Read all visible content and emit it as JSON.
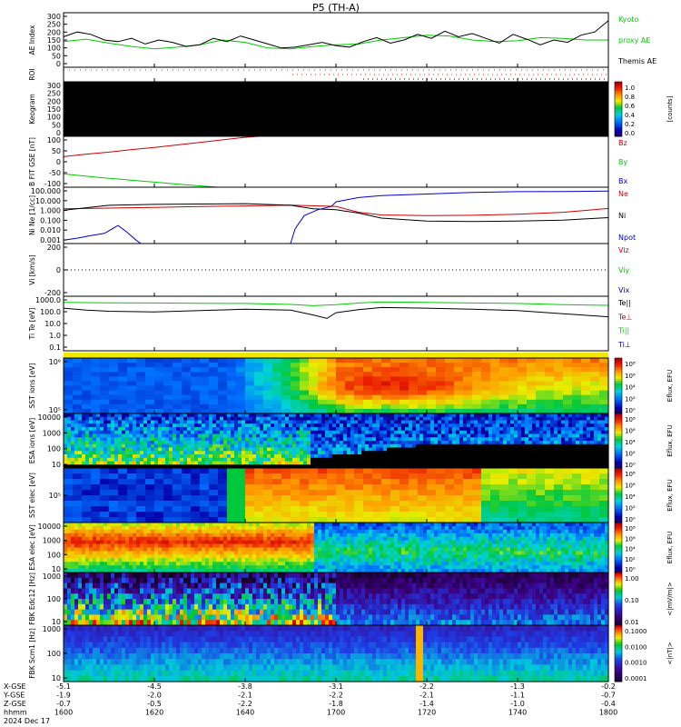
{
  "chart_data": {
    "type": "line",
    "title": "P5 (TH-A)",
    "date_label": "2024 Dec 17",
    "ephemeris": {
      "labels": [
        "X-GSE",
        "Y-GSE",
        "Z-GSE",
        "hhmm"
      ],
      "columns": [
        [
          "-5.1",
          "-1.9",
          "-0.7",
          "1600"
        ],
        [
          "-4.5",
          "-2.0",
          "-0.5",
          "1620"
        ],
        [
          "-3.8",
          "-2.1",
          "-2.2",
          "1640"
        ],
        [
          "-3.1",
          "-2.2",
          "-1.8",
          "1700"
        ],
        [
          "-2.2",
          "-2.1",
          "-1.4",
          "1720"
        ],
        [
          "-1.3",
          "-1.1",
          "-1.0",
          "1740"
        ],
        [
          "-0.2",
          "-0.7",
          "-0.4",
          "1800"
        ]
      ]
    },
    "panels": [
      {
        "id": "ae",
        "ylabel": "AE Index",
        "yticks": [
          "300",
          "250",
          "200",
          "150",
          "100",
          "50",
          "0"
        ],
        "ylim": [
          -20,
          320
        ],
        "legend": [
          {
            "text": "Kyoto",
            "color": "#00cc00"
          },
          {
            "text": "proxy AE",
            "color": "#00cc00"
          },
          {
            "text": "Themis AE",
            "color": "#000000"
          }
        ],
        "series": [
          {
            "name": "Kyoto proxy AE",
            "color": "#00cc00",
            "x": [
              1600,
              1605,
              1610,
              1615,
              1620,
              1625,
              1630,
              1635,
              1640,
              1645,
              1650,
              1655,
              1700,
              1705,
              1710,
              1715,
              1720,
              1725,
              1730,
              1735,
              1740,
              1745,
              1750,
              1755,
              1800
            ],
            "y": [
              140,
              155,
              130,
              110,
              95,
              105,
              120,
              150,
              135,
              100,
              95,
              110,
              120,
              125,
              150,
              165,
              180,
              175,
              150,
              140,
              145,
              165,
              160,
              150,
              150
            ]
          },
          {
            "name": "Themis AE",
            "color": "#000000",
            "x": [
              1600,
              1603,
              1606,
              1609,
              1612,
              1615,
              1618,
              1621,
              1624,
              1627,
              1630,
              1633,
              1636,
              1639,
              1642,
              1645,
              1648,
              1651,
              1654,
              1657,
              1700,
              1703,
              1706,
              1709,
              1712,
              1715,
              1718,
              1721,
              1724,
              1727,
              1730,
              1733,
              1736,
              1739,
              1742,
              1745,
              1748,
              1751,
              1754,
              1757,
              1800
            ],
            "y": [
              170,
              200,
              185,
              150,
              140,
              160,
              125,
              150,
              135,
              110,
              120,
              160,
              140,
              175,
              150,
              125,
              100,
              105,
              120,
              135,
              115,
              105,
              140,
              165,
              130,
              150,
              185,
              160,
              205,
              170,
              190,
              160,
              130,
              185,
              155,
              120,
              150,
              135,
              180,
              200,
              270
            ]
          }
        ]
      },
      {
        "id": "roi",
        "ylabel": "ROI"
      },
      {
        "id": "keogram",
        "ylabel": "Keogram",
        "yticks": [
          "300",
          "250",
          "200",
          "150",
          "100",
          "50",
          "0"
        ],
        "colorbar": {
          "label": "[counts]",
          "ticks": [
            "1.0",
            "0.8",
            "0.6",
            "0.4",
            "0.2",
            "0.0"
          ]
        }
      },
      {
        "id": "bfield",
        "ylabel": "B FIT GSE [nT]",
        "yticks": [
          "100",
          "50",
          "0",
          "-50",
          "-100"
        ],
        "ylim": [
          -100,
          100
        ],
        "legend": [
          {
            "text": "Bz",
            "color": "#cc0000"
          },
          {
            "text": "By",
            "color": "#00cc00"
          },
          {
            "text": "Bx",
            "color": "#0000cc"
          }
        ],
        "series": [
          {
            "name": "Bz",
            "color": "#cc0000",
            "x": [
              1600,
              1605,
              1610,
              1615,
              1620,
              1625,
              1630,
              1635,
              1640,
              1643
            ],
            "y": [
              20,
              30,
              38,
              48,
              56,
              66,
              76,
              86,
              96,
              100
            ]
          },
          {
            "name": "By",
            "color": "#00cc00",
            "x": [
              1600,
              1604,
              1608,
              1612,
              1616,
              1620,
              1624,
              1628,
              1632,
              1634
            ],
            "y": [
              -48,
              -55,
              -62,
              -68,
              -74,
              -80,
              -86,
              -92,
              -97,
              -100
            ]
          }
        ]
      },
      {
        "id": "density",
        "ylabel": "Ni Ne [1/cc]",
        "yticks": [
          "100.000",
          "10.000",
          "1.000",
          "0.100",
          "0.010",
          "0.001"
        ],
        "ylim": [
          0.001,
          100
        ],
        "log": true,
        "legend": [
          {
            "text": "Ne",
            "color": "#cc0000"
          },
          {
            "text": "Ni",
            "color": "#000000"
          },
          {
            "text": "Npot",
            "color": "#0000cc"
          }
        ],
        "series": [
          {
            "name": "Ne",
            "color": "#cc0000",
            "x": [
              1600,
              1610,
              1620,
              1630,
              1640,
              1650,
              1700,
              1705,
              1710,
              1720,
              1730,
              1740,
              1750,
              1800
            ],
            "y": [
              1.2,
              1.4,
              1.6,
              1.9,
              2.2,
              2.6,
              2.0,
              0.6,
              0.35,
              0.3,
              0.32,
              0.4,
              0.6,
              1.3
            ]
          },
          {
            "name": "Ni",
            "color": "#000000",
            "x": [
              1600,
              1605,
              1610,
              1620,
              1630,
              1640,
              1650,
              1655,
              1700,
              1705,
              1710,
              1720,
              1730,
              1740,
              1750,
              1800
            ],
            "y": [
              0.9,
              1.5,
              2.5,
              3.0,
              3.2,
              3.5,
              2.5,
              1.2,
              1.0,
              0.5,
              0.18,
              0.1,
              0.09,
              0.1,
              0.12,
              0.2
            ]
          },
          {
            "name": "Npot",
            "color": "#0000cc",
            "x": [
              1600,
              1603,
              1606,
              1609,
              1612,
              1614,
              1616,
              1617,
              1650,
              1651,
              1653,
              1656,
              1659,
              1700,
              1705,
              1710,
              1720,
              1730,
              1740,
              1750,
              1800
            ],
            "y": [
              0.002,
              0.003,
              0.005,
              0.008,
              0.04,
              0.01,
              0.002,
              0.001,
              0.001,
              0.02,
              0.3,
              1.0,
              2.0,
              5.0,
              12,
              18,
              25,
              35,
              40,
              42,
              45
            ]
          }
        ]
      },
      {
        "id": "velocity",
        "ylabel": "Vi [km/s]",
        "yticks": [
          "200",
          "0",
          "-200"
        ],
        "ylim": [
          -260,
          260
        ],
        "legend": [
          {
            "text": "Viz",
            "color": "#cc0000"
          },
          {
            "text": "Viy",
            "color": "#00cc00"
          },
          {
            "text": "Vix",
            "color": "#0000cc"
          }
        ]
      },
      {
        "id": "temperature",
        "ylabel": "Ti Te [eV]",
        "yticks": [
          "1000.0",
          "100.0",
          "10.0",
          "1.0",
          "0.1"
        ],
        "ylim": [
          0.05,
          10000
        ],
        "log": true,
        "legend": [
          {
            "text": "Te||",
            "color": "#000000"
          },
          {
            "text": "Te⊥",
            "color": "#cc0000"
          },
          {
            "text": "Ti||",
            "color": "#00cc00"
          },
          {
            "text": "Ti⊥",
            "color": "#0000cc"
          }
        ],
        "series": [
          {
            "name": "Ti||",
            "color": "#00cc00",
            "x": [
              1600,
              1610,
              1620,
              1630,
              1640,
              1650,
              1655,
              1700,
              1705,
              1710,
              1720,
              1730,
              1740,
              1750,
              1800
            ],
            "y": [
              2500,
              2300,
              2200,
              2100,
              2000,
              1600,
              1200,
              1500,
              2200,
              2800,
              2500,
              2200,
              2000,
              1500,
              1300
            ]
          },
          {
            "name": "Te||",
            "color": "#000000",
            "x": [
              1600,
              1605,
              1610,
              1620,
              1630,
              1640,
              1650,
              1655,
              1658,
              1700,
              1705,
              1710,
              1720,
              1730,
              1740,
              1750,
              1800
            ],
            "y": [
              700,
              450,
              350,
              300,
              400,
              550,
              450,
              150,
              70,
              250,
              500,
              800,
              700,
              550,
              400,
              200,
              100
            ]
          }
        ]
      },
      {
        "id": "sst_ion",
        "ylabel": "SST ions [eV]",
        "yticks": [
          "10⁶",
          "10⁵"
        ],
        "colorbar": {
          "label": "Eflux, EFU",
          "ticks": [
            "10⁸",
            "10⁶",
            "10⁴",
            "10²",
            "10⁰"
          ]
        }
      },
      {
        "id": "esa_ion",
        "ylabel": "ESA ions [eV]",
        "yticks": [
          "10000",
          "1000",
          "100",
          "10"
        ],
        "colorbar": {
          "label": "Eflux, EFU",
          "ticks": [
            "10⁸",
            "10⁶",
            "10⁴",
            "10²",
            "10⁰"
          ]
        }
      },
      {
        "id": "sst_elec",
        "ylabel": "SST elec [eV]",
        "yticks": [
          "10⁵"
        ],
        "colorbar": {
          "label": "Eflux, EFU",
          "ticks": [
            "10⁸",
            "10⁶",
            "10⁴",
            "10²",
            "10⁰"
          ]
        }
      },
      {
        "id": "esa_elec",
        "ylabel": "ESA elec [eV]",
        "yticks": [
          "10000",
          "1000",
          "100",
          "10"
        ],
        "colorbar": {
          "label": "Eflux, EFU",
          "ticks": [
            "10⁸",
            "10⁶",
            "10⁴",
            "10²",
            "10⁰"
          ]
        }
      },
      {
        "id": "fbk_e",
        "ylabel": "FBK Edc12 [Hz]",
        "yticks": [
          "1000",
          "100",
          "10"
        ],
        "colorbar": {
          "label": "<|mV/m|>",
          "ticks": [
            "1.00",
            "0.10",
            "0.01"
          ]
        }
      },
      {
        "id": "fbk_b",
        "ylabel": "FBK Scm1 [Hz]",
        "yticks": [
          "1000",
          "100",
          "10"
        ],
        "colorbar": {
          "label": "<|nT|>",
          "ticks": [
            "0.1000",
            "0.0100",
            "0.0010",
            "0.0001"
          ]
        }
      }
    ]
  }
}
